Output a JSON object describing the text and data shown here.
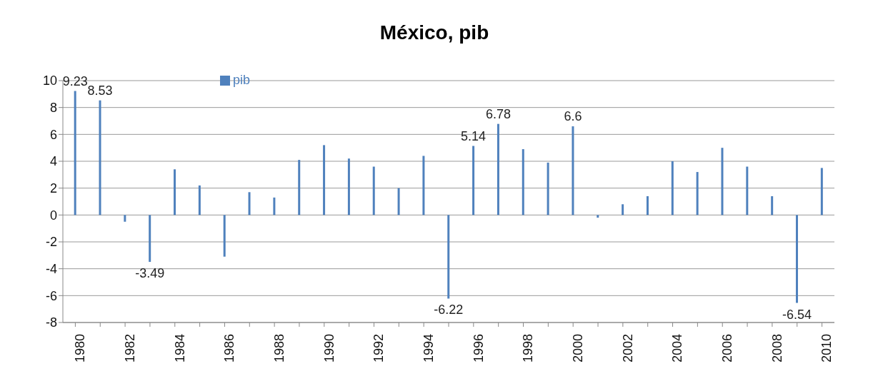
{
  "chart_data": {
    "type": "bar",
    "title": "México, pib",
    "categories": [
      "1980",
      null,
      "1982",
      null,
      "1984",
      null,
      "1986",
      null,
      "1988",
      null,
      "1990",
      null,
      "1992",
      null,
      "1994",
      null,
      "1996",
      null,
      "1998",
      null,
      "2000",
      null,
      "2002",
      null,
      "2004",
      null,
      "2006",
      null,
      "2008",
      null,
      "2010"
    ],
    "series": [
      {
        "name": "pib",
        "color": "#4f81bd",
        "values": [
          9.23,
          8.53,
          -0.5,
          -3.49,
          3.4,
          2.2,
          -3.1,
          1.7,
          1.3,
          4.1,
          5.2,
          4.2,
          3.6,
          2.0,
          4.4,
          -6.22,
          5.14,
          6.78,
          4.9,
          3.9,
          6.6,
          -0.2,
          0.8,
          1.4,
          4.0,
          3.2,
          5.0,
          3.6,
          1.4,
          -6.54,
          3.5
        ],
        "value_labels": [
          "9.23",
          "8.53",
          null,
          "-3.49",
          null,
          null,
          null,
          null,
          null,
          null,
          null,
          null,
          null,
          null,
          null,
          "-6.22",
          "5.14",
          "6.78",
          null,
          null,
          "6.6",
          null,
          null,
          null,
          null,
          null,
          null,
          null,
          null,
          "-6.54",
          null
        ]
      }
    ],
    "ylim": [
      -8,
      10
    ],
    "yticks": [
      -8,
      -6,
      -4,
      -2,
      0,
      2,
      4,
      6,
      8,
      10
    ],
    "grid": "y",
    "legend": "top left"
  }
}
